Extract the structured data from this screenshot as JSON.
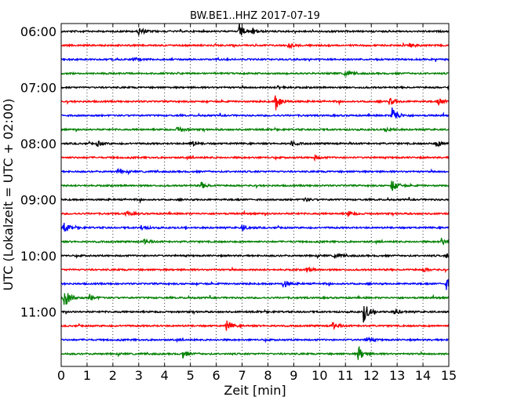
{
  "chart_data": {
    "type": "line",
    "title": "BW.BE1..HHZ 2017-07-19",
    "xlabel": "Zeit  [min]",
    "ylabel": "UTC (Lokalzeit = UTC + 02:00)",
    "xlim": [
      0,
      15
    ],
    "xticks": [
      "0",
      "1",
      "2",
      "3",
      "4",
      "5",
      "6",
      "7",
      "8",
      "9",
      "10",
      "11",
      "12",
      "13",
      "14",
      "15"
    ],
    "y_time_labels": [
      "06:00",
      "07:00",
      "08:00",
      "09:00",
      "10:00",
      "11:00"
    ],
    "traces_per_hour": 4,
    "grid": "vertical dotted",
    "series": [
      {
        "start": "06:00",
        "color": "#000000",
        "events": [
          {
            "minute": 3.0,
            "amplitude": 0.35
          },
          {
            "minute": 6.9,
            "amplitude": 0.55
          },
          {
            "minute": 7.4,
            "amplitude": 0.25
          }
        ]
      },
      {
        "start": "06:15",
        "color": "#ff0000",
        "events": [
          {
            "minute": 8.8,
            "amplitude": 0.2
          },
          {
            "minute": 13.5,
            "amplitude": 0.15
          }
        ]
      },
      {
        "start": "06:30",
        "color": "#0000ff",
        "events": [
          {
            "minute": 2.8,
            "amplitude": 0.15
          }
        ]
      },
      {
        "start": "06:45",
        "color": "#008000",
        "events": [
          {
            "minute": 11.0,
            "amplitude": 0.25
          }
        ]
      },
      {
        "start": "07:00",
        "color": "#000000",
        "events": [
          {
            "minute": 8.4,
            "amplitude": 0.2
          },
          {
            "minute": 15.0,
            "amplitude": 0.3
          }
        ]
      },
      {
        "start": "07:15",
        "color": "#ff0000",
        "events": [
          {
            "minute": 8.3,
            "amplitude": 0.75
          },
          {
            "minute": 12.7,
            "amplitude": 0.3
          },
          {
            "minute": 14.6,
            "amplitude": 0.3
          }
        ]
      },
      {
        "start": "07:30",
        "color": "#0000ff",
        "events": [
          {
            "minute": 12.8,
            "amplitude": 0.8
          }
        ]
      },
      {
        "start": "07:45",
        "color": "#008000",
        "events": [
          {
            "minute": 4.5,
            "amplitude": 0.3
          },
          {
            "minute": 12.6,
            "amplitude": 0.2
          }
        ]
      },
      {
        "start": "08:00",
        "color": "#000000",
        "events": [
          {
            "minute": 1.4,
            "amplitude": 0.2
          },
          {
            "minute": 5.0,
            "amplitude": 0.25
          },
          {
            "minute": 8.9,
            "amplitude": 0.2
          },
          {
            "minute": 14.5,
            "amplitude": 0.3
          }
        ]
      },
      {
        "start": "08:15",
        "color": "#ff0000",
        "events": [
          {
            "minute": 9.8,
            "amplitude": 0.15
          }
        ]
      },
      {
        "start": "08:30",
        "color": "#0000ff",
        "events": [
          {
            "minute": 2.2,
            "amplitude": 0.15
          }
        ]
      },
      {
        "start": "08:45",
        "color": "#008000",
        "events": [
          {
            "minute": 5.4,
            "amplitude": 0.3
          },
          {
            "minute": 12.8,
            "amplitude": 0.55
          }
        ]
      },
      {
        "start": "09:00",
        "color": "#000000",
        "events": [
          {
            "minute": 9.4,
            "amplitude": 0.15
          }
        ]
      },
      {
        "start": "09:15",
        "color": "#ff0000",
        "events": [
          {
            "minute": 2.5,
            "amplitude": 0.2
          },
          {
            "minute": 11.1,
            "amplitude": 0.2
          }
        ]
      },
      {
        "start": "09:30",
        "color": "#0000ff",
        "events": [
          {
            "minute": 0.1,
            "amplitude": 0.45
          },
          {
            "minute": 3.1,
            "amplitude": 0.2
          },
          {
            "minute": 7.0,
            "amplitude": 0.25
          }
        ]
      },
      {
        "start": "09:45",
        "color": "#008000",
        "events": [
          {
            "minute": 3.2,
            "amplitude": 0.2
          },
          {
            "minute": 14.7,
            "amplitude": 0.3
          }
        ]
      },
      {
        "start": "10:00",
        "color": "#000000",
        "events": [
          {
            "minute": 10.6,
            "amplitude": 0.2
          },
          {
            "minute": 14.9,
            "amplitude": 0.2
          }
        ]
      },
      {
        "start": "10:15",
        "color": "#ff0000",
        "events": [
          {
            "minute": 9.5,
            "amplitude": 0.2
          },
          {
            "minute": 14.0,
            "amplitude": 0.15
          }
        ]
      },
      {
        "start": "10:30",
        "color": "#0000ff",
        "events": [
          {
            "minute": 8.6,
            "amplitude": 0.35
          },
          {
            "minute": 14.9,
            "amplitude": 0.45
          }
        ]
      },
      {
        "start": "10:45",
        "color": "#008000",
        "events": [
          {
            "minute": 0.1,
            "amplitude": 0.95
          },
          {
            "minute": 1.1,
            "amplitude": 0.25
          }
        ]
      },
      {
        "start": "11:00",
        "color": "#000000",
        "events": [
          {
            "minute": 11.7,
            "amplitude": 0.85
          },
          {
            "minute": 12.9,
            "amplitude": 0.2
          }
        ]
      },
      {
        "start": "11:15",
        "color": "#ff0000",
        "events": [
          {
            "minute": 6.4,
            "amplitude": 0.4
          },
          {
            "minute": 10.5,
            "amplitude": 0.3
          }
        ]
      },
      {
        "start": "11:30",
        "color": "#0000ff",
        "events": [
          {
            "minute": 11.8,
            "amplitude": 0.25
          }
        ]
      },
      {
        "start": "11:45",
        "color": "#008000",
        "events": [
          {
            "minute": 4.7,
            "amplitude": 0.3
          },
          {
            "minute": 11.5,
            "amplitude": 0.6
          }
        ]
      }
    ]
  }
}
